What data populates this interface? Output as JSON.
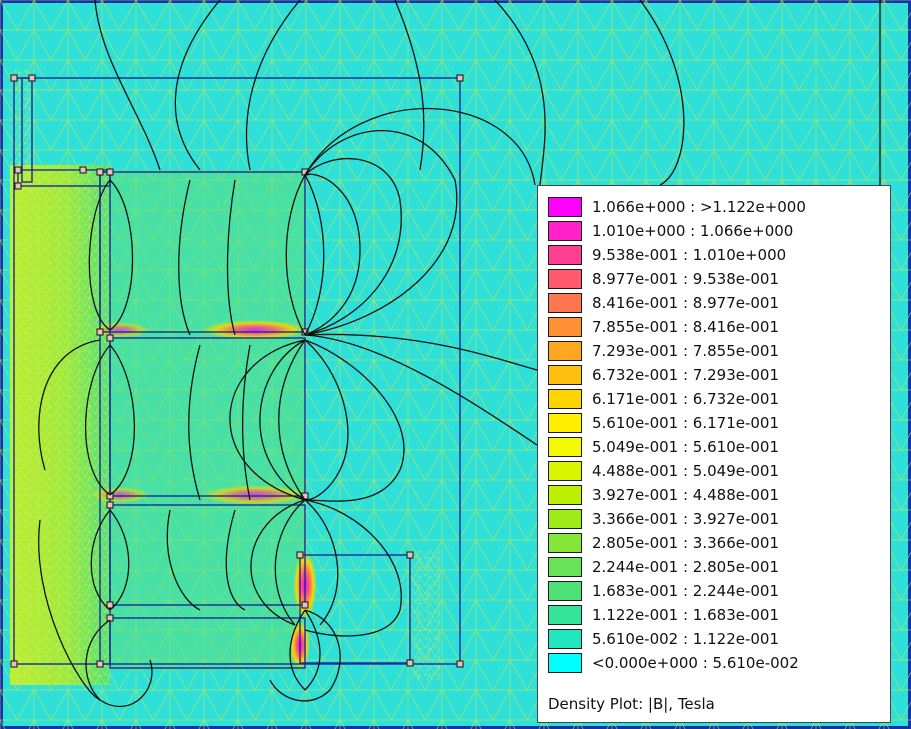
{
  "legend": {
    "entries": [
      {
        "label": "1.066e+000 : >1.122e+000",
        "color": "#ff00ff"
      },
      {
        "label": "1.010e+000 : 1.066e+000",
        "color": "#ff22c8"
      },
      {
        "label": "9.538e-001 : 1.010e+000",
        "color": "#ff3f92"
      },
      {
        "label": "8.977e-001 : 9.538e-001",
        "color": "#ff5a6e"
      },
      {
        "label": "8.416e-001 : 8.977e-001",
        "color": "#ff7650"
      },
      {
        "label": "7.855e-001 : 8.416e-001",
        "color": "#ff9035"
      },
      {
        "label": "7.293e-001 : 7.855e-001",
        "color": "#ffa71f"
      },
      {
        "label": "6.732e-001 : 7.293e-001",
        "color": "#ffbf0f"
      },
      {
        "label": "6.171e-001 : 6.732e-001",
        "color": "#ffd400"
      },
      {
        "label": "5.610e-001 : 6.171e-001",
        "color": "#ffee00"
      },
      {
        "label": "5.049e-001 : 5.610e-001",
        "color": "#f4f900"
      },
      {
        "label": "4.488e-001 : 5.049e-001",
        "color": "#d9f500"
      },
      {
        "label": "3.927e-001 : 4.488e-001",
        "color": "#bcf000"
      },
      {
        "label": "3.366e-001 : 3.927e-001",
        "color": "#9feb18"
      },
      {
        "label": "2.805e-001 : 3.366e-001",
        "color": "#85e63a"
      },
      {
        "label": "2.244e-001 : 2.805e-001",
        "color": "#6ae25a"
      },
      {
        "label": "1.683e-001 : 2.244e-001",
        "color": "#4fe078"
      },
      {
        "label": "1.122e-001 : 1.683e-001",
        "color": "#36e39b"
      },
      {
        "label": "5.610e-002 : 1.122e-001",
        "color": "#22e6bf"
      },
      {
        "label": "<0.000e+000 : 5.610e-002",
        "color": "#00ffff"
      }
    ],
    "caption": "Density Plot: |B|, Tesla"
  }
}
